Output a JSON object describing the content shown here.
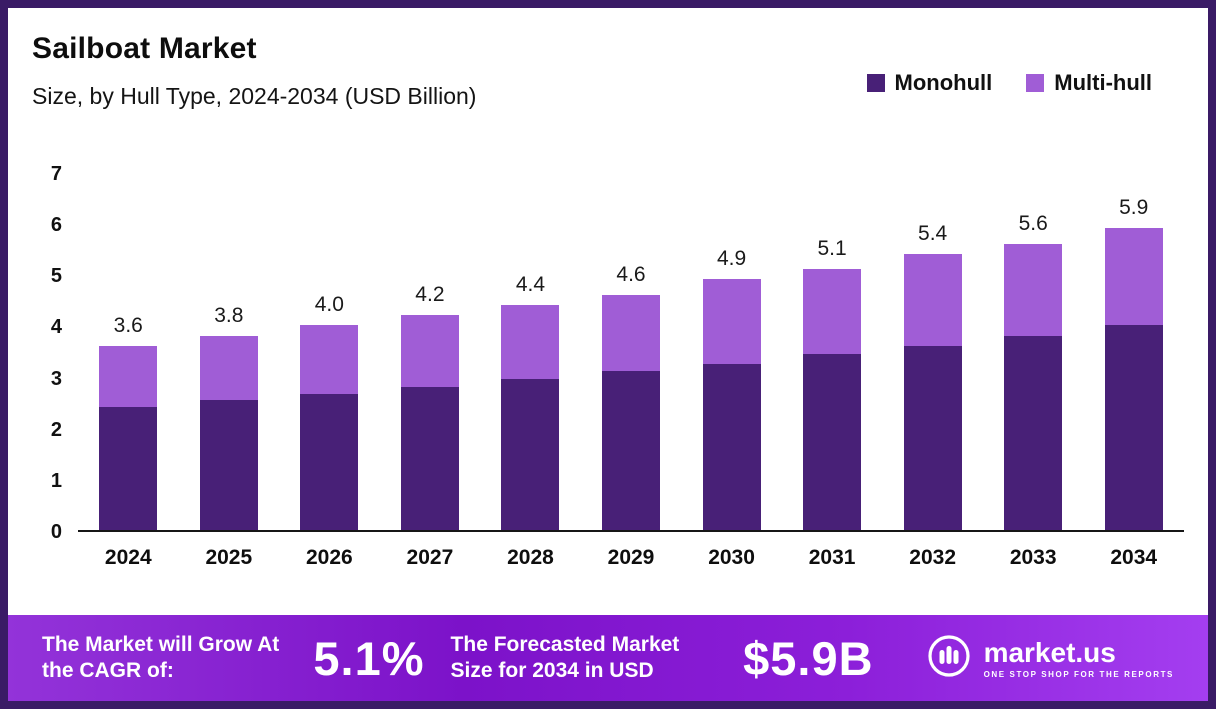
{
  "header": {
    "title": "Sailboat Market",
    "subtitle": "Size, by Hull Type, 2024-2034 (USD Billion)"
  },
  "legend": [
    {
      "label": "Monohull",
      "color": "#482077"
    },
    {
      "label": "Multi-hull",
      "color": "#a05dd6"
    }
  ],
  "chart_data": {
    "type": "bar",
    "stacked": true,
    "title": "Sailboat Market",
    "subtitle": "Size, by Hull Type, 2024-2034 (USD Billion)",
    "xlabel": "",
    "ylabel": "",
    "ylim": [
      0,
      7
    ],
    "y_ticks": [
      0,
      1,
      2,
      3,
      4,
      5,
      6,
      7
    ],
    "grid": false,
    "legend_position": "top-right",
    "categories": [
      "2024",
      "2025",
      "2026",
      "2027",
      "2028",
      "2029",
      "2030",
      "2031",
      "2032",
      "2033",
      "2034"
    ],
    "series": [
      {
        "name": "Monohull",
        "color": "#482077",
        "values": [
          2.4,
          2.55,
          2.65,
          2.8,
          2.95,
          3.1,
          3.25,
          3.45,
          3.6,
          3.8,
          4.0
        ]
      },
      {
        "name": "Multi-hull",
        "color": "#a05dd6",
        "values": [
          1.2,
          1.25,
          1.35,
          1.4,
          1.45,
          1.5,
          1.65,
          1.65,
          1.8,
          1.8,
          1.9
        ]
      }
    ],
    "totals": [
      3.6,
      3.8,
      4.0,
      4.2,
      4.4,
      4.6,
      4.9,
      5.1,
      5.4,
      5.6,
      5.9
    ],
    "total_labels": [
      "3.6",
      "3.8",
      "4.0",
      "4.2",
      "4.4",
      "4.6",
      "4.9",
      "5.1",
      "5.4",
      "5.6",
      "5.9"
    ]
  },
  "footer": {
    "cagr_label": "The Market will Grow At the CAGR of:",
    "cagr_value": "5.1%",
    "forecast_label": "The Forecasted Market Size for 2034 in USD",
    "forecast_value": "$5.9B",
    "brand": "market.us",
    "brand_tagline": "ONE STOP SHOP FOR THE REPORTS"
  }
}
